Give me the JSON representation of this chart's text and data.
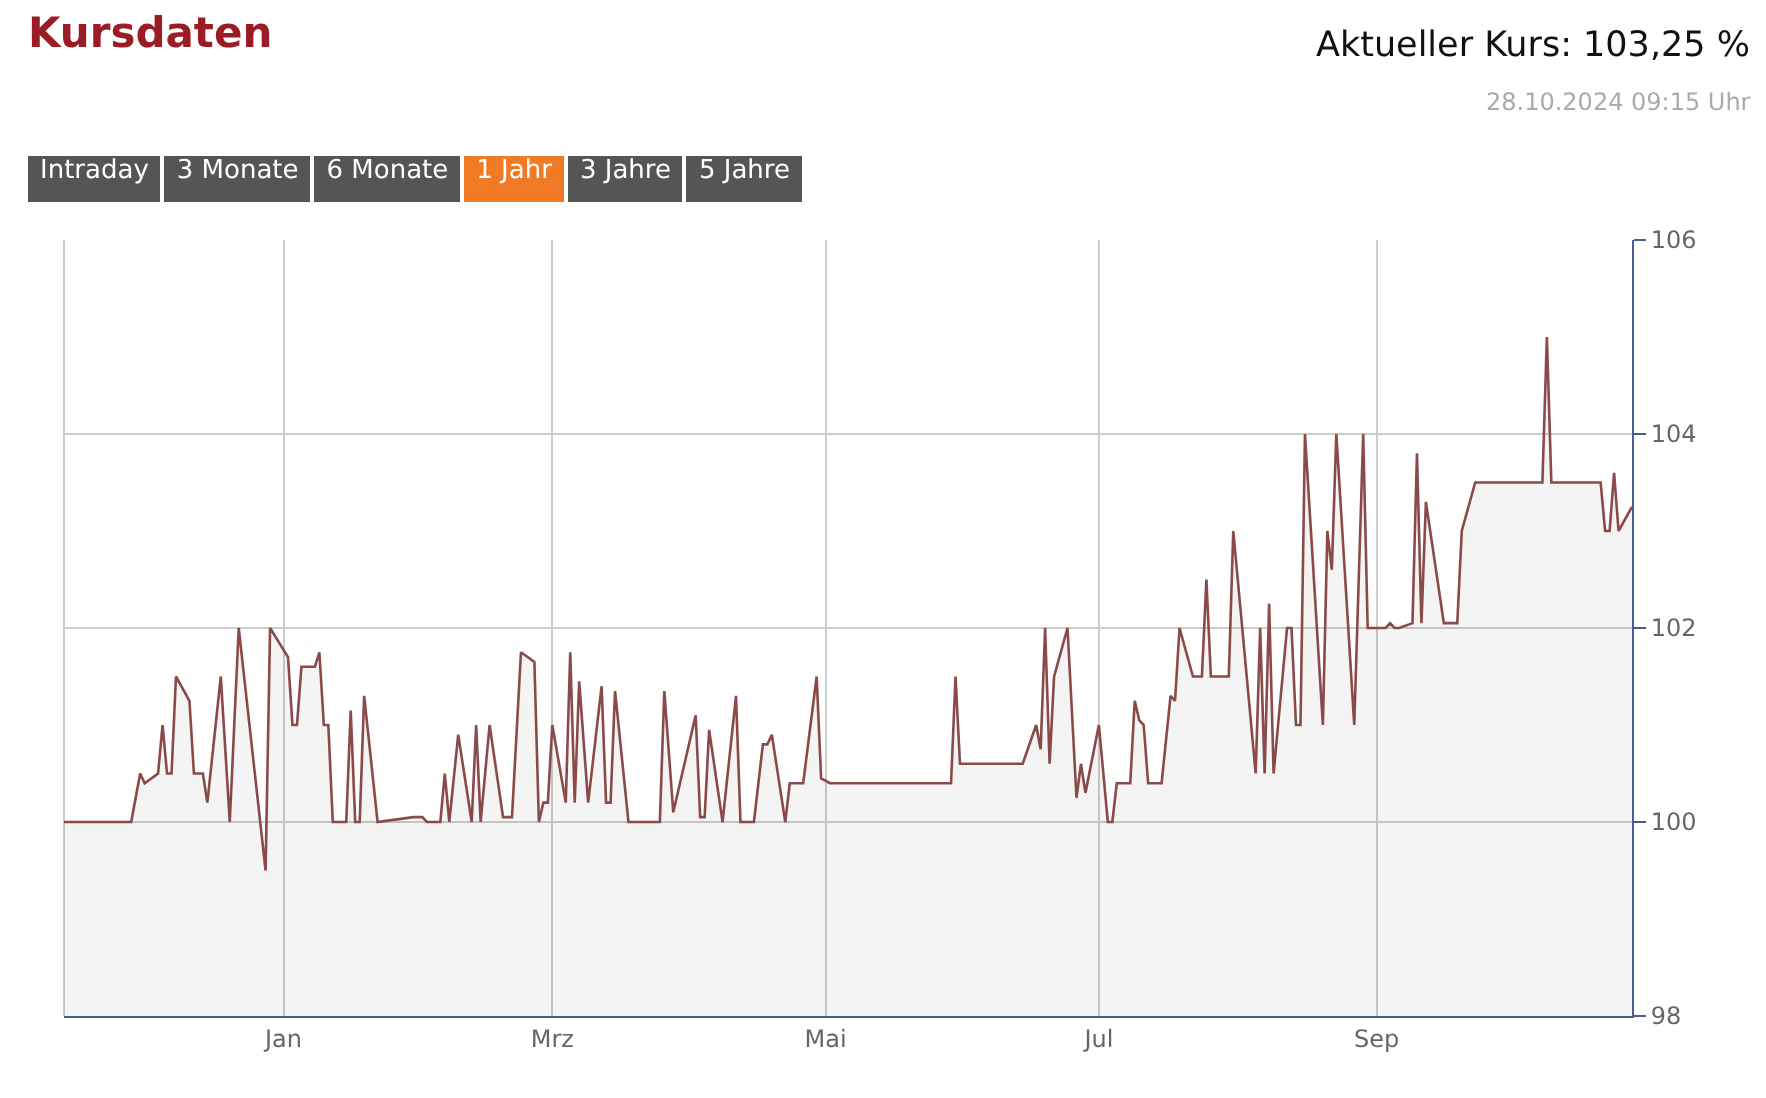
{
  "chart_data": {
    "type": "area",
    "title": "Kursdaten",
    "subtitle": "Aktueller Kurs: 103,25 %",
    "annotations": [
      "28.10.2024 09:15 Uhr",
      "Intraday",
      "3 Monate",
      "6 Monate",
      "1 Jahr",
      "3 Jahre",
      "5 Jahre"
    ],
    "x": [
      "2023-11-13",
      "2023-11-28",
      "2023-11-30",
      "2023-12-01",
      "2023-12-04",
      "2023-12-05",
      "2023-12-06",
      "2023-12-07",
      "2023-12-08",
      "2023-12-11",
      "2023-12-12",
      "2023-12-14",
      "2023-12-15",
      "2023-12-18",
      "2023-12-20",
      "2023-12-22",
      "2023-12-28",
      "2023-12-29",
      "2024-01-02",
      "2024-01-03",
      "2024-01-04",
      "2024-01-05",
      "2024-01-08",
      "2024-01-09",
      "2024-01-10",
      "2024-01-11",
      "2024-01-12",
      "2024-01-15",
      "2024-01-16",
      "2024-01-17",
      "2024-01-18",
      "2024-01-19",
      "2024-01-22",
      "2024-01-30",
      "2024-02-01",
      "2024-02-02",
      "2024-02-05",
      "2024-02-06",
      "2024-02-07",
      "2024-02-09",
      "2024-02-12",
      "2024-02-13",
      "2024-02-14",
      "2024-02-16",
      "2024-02-19",
      "2024-02-21",
      "2024-02-23",
      "2024-02-26",
      "2024-02-27",
      "2024-02-28",
      "2024-02-29",
      "2024-03-01",
      "2024-03-04",
      "2024-03-05",
      "2024-03-06",
      "2024-03-07",
      "2024-03-09",
      "2024-03-12",
      "2024-03-13",
      "2024-03-14",
      "2024-03-15",
      "2024-03-18",
      "2024-03-25",
      "2024-03-26",
      "2024-03-28",
      "2024-04-02",
      "2024-04-03",
      "2024-04-04",
      "2024-04-05",
      "2024-04-08",
      "2024-04-11",
      "2024-04-12",
      "2024-04-15",
      "2024-04-17",
      "2024-04-18",
      "2024-04-19",
      "2024-04-22",
      "2024-04-23",
      "2024-04-26",
      "2024-04-29",
      "2024-04-30",
      "2024-05-02",
      "2024-05-29",
      "2024-05-30",
      "2024-05-31",
      "2024-06-14",
      "2024-06-17",
      "2024-06-18",
      "2024-06-19",
      "2024-06-20",
      "2024-06-21",
      "2024-06-24",
      "2024-06-26",
      "2024-06-27",
      "2024-06-28",
      "2024-07-01",
      "2024-07-03",
      "2024-07-04",
      "2024-07-05",
      "2024-07-08",
      "2024-07-09",
      "2024-07-10",
      "2024-07-11",
      "2024-07-12",
      "2024-07-15",
      "2024-07-17",
      "2024-07-18",
      "2024-07-19",
      "2024-07-22",
      "2024-07-24",
      "2024-07-25",
      "2024-07-26",
      "2024-07-30",
      "2024-07-31",
      "2024-08-05",
      "2024-08-06",
      "2024-08-07",
      "2024-08-08",
      "2024-08-09",
      "2024-08-12",
      "2024-08-13",
      "2024-08-14",
      "2024-08-15",
      "2024-08-16",
      "2024-08-20",
      "2024-08-21",
      "2024-08-22",
      "2024-08-23",
      "2024-08-27",
      "2024-08-29",
      "2024-08-30",
      "2024-09-03",
      "2024-09-04",
      "2024-09-05",
      "2024-09-06",
      "2024-09-09",
      "2024-09-10",
      "2024-09-11",
      "2024-09-12",
      "2024-09-16",
      "2024-09-19",
      "2024-09-20",
      "2024-09-23",
      "2024-10-08",
      "2024-10-09",
      "2024-10-10",
      "2024-10-21",
      "2024-10-22",
      "2024-10-23",
      "2024-10-24",
      "2024-10-25",
      "2024-10-28"
    ],
    "series": [
      {
        "color": "#8b4a4a",
        "values": [
          100,
          100,
          100.5,
          100.4,
          100.5,
          101,
          100.5,
          100.5,
          101.5,
          101.25,
          100.5,
          100.5,
          100.2,
          101.5,
          100,
          102,
          99.5,
          102,
          101.7,
          101,
          101,
          101.6,
          101.6,
          101.75,
          101,
          101,
          100,
          100,
          101.15,
          100,
          100,
          101.3,
          100,
          100.05,
          100.05,
          100,
          100,
          100.5,
          100,
          100.9,
          100,
          101,
          100,
          101,
          100.05,
          100.05,
          101.75,
          101.65,
          100,
          100.2,
          100.2,
          101,
          100.2,
          101.75,
          100.2,
          101.45,
          100.2,
          101.4,
          100.2,
          100.2,
          101.35,
          100,
          100,
          101.35,
          100.1,
          101.1,
          100.05,
          100.05,
          100.95,
          100,
          101.3,
          100,
          100,
          100.8,
          100.8,
          100.9,
          100,
          100.4,
          100.4,
          101.5,
          100.45,
          100.4,
          100.4,
          101.5,
          100.6,
          100.6,
          101,
          100.75,
          102,
          100.6,
          101.5,
          102,
          100.25,
          100.6,
          100.3,
          101,
          100,
          100,
          100.4,
          100.4,
          101.25,
          101.05,
          101,
          100.4,
          100.4,
          101.3,
          101.25,
          102,
          101.5,
          101.5,
          102.5,
          101.5,
          101.5,
          103,
          100.5,
          102,
          100.5,
          102.25,
          100.5,
          102,
          102,
          101,
          101,
          104,
          101,
          103,
          102.6,
          104,
          101,
          104,
          102,
          102,
          102.05,
          102,
          102,
          102.05,
          103.8,
          102.05,
          103.3,
          102.05,
          102.05,
          103,
          103.5,
          103.5,
          105,
          103.5,
          103.5,
          103,
          103,
          103.6,
          103,
          103.25
        ]
      }
    ],
    "xlim": [
      "2023-11-13",
      "2024-10-28"
    ],
    "xticks": [
      {
        "value": "2024-01-01",
        "label": "Jan"
      },
      {
        "value": "2024-03-01",
        "label": "Mrz"
      },
      {
        "value": "2024-05-01",
        "label": "Mai"
      },
      {
        "value": "2024-07-01",
        "label": "Jul"
      },
      {
        "value": "2024-09-01",
        "label": "Sep"
      }
    ],
    "ylim": [
      98,
      106
    ],
    "yticks": [
      98,
      100,
      102,
      104,
      106
    ],
    "grid": true
  }
}
